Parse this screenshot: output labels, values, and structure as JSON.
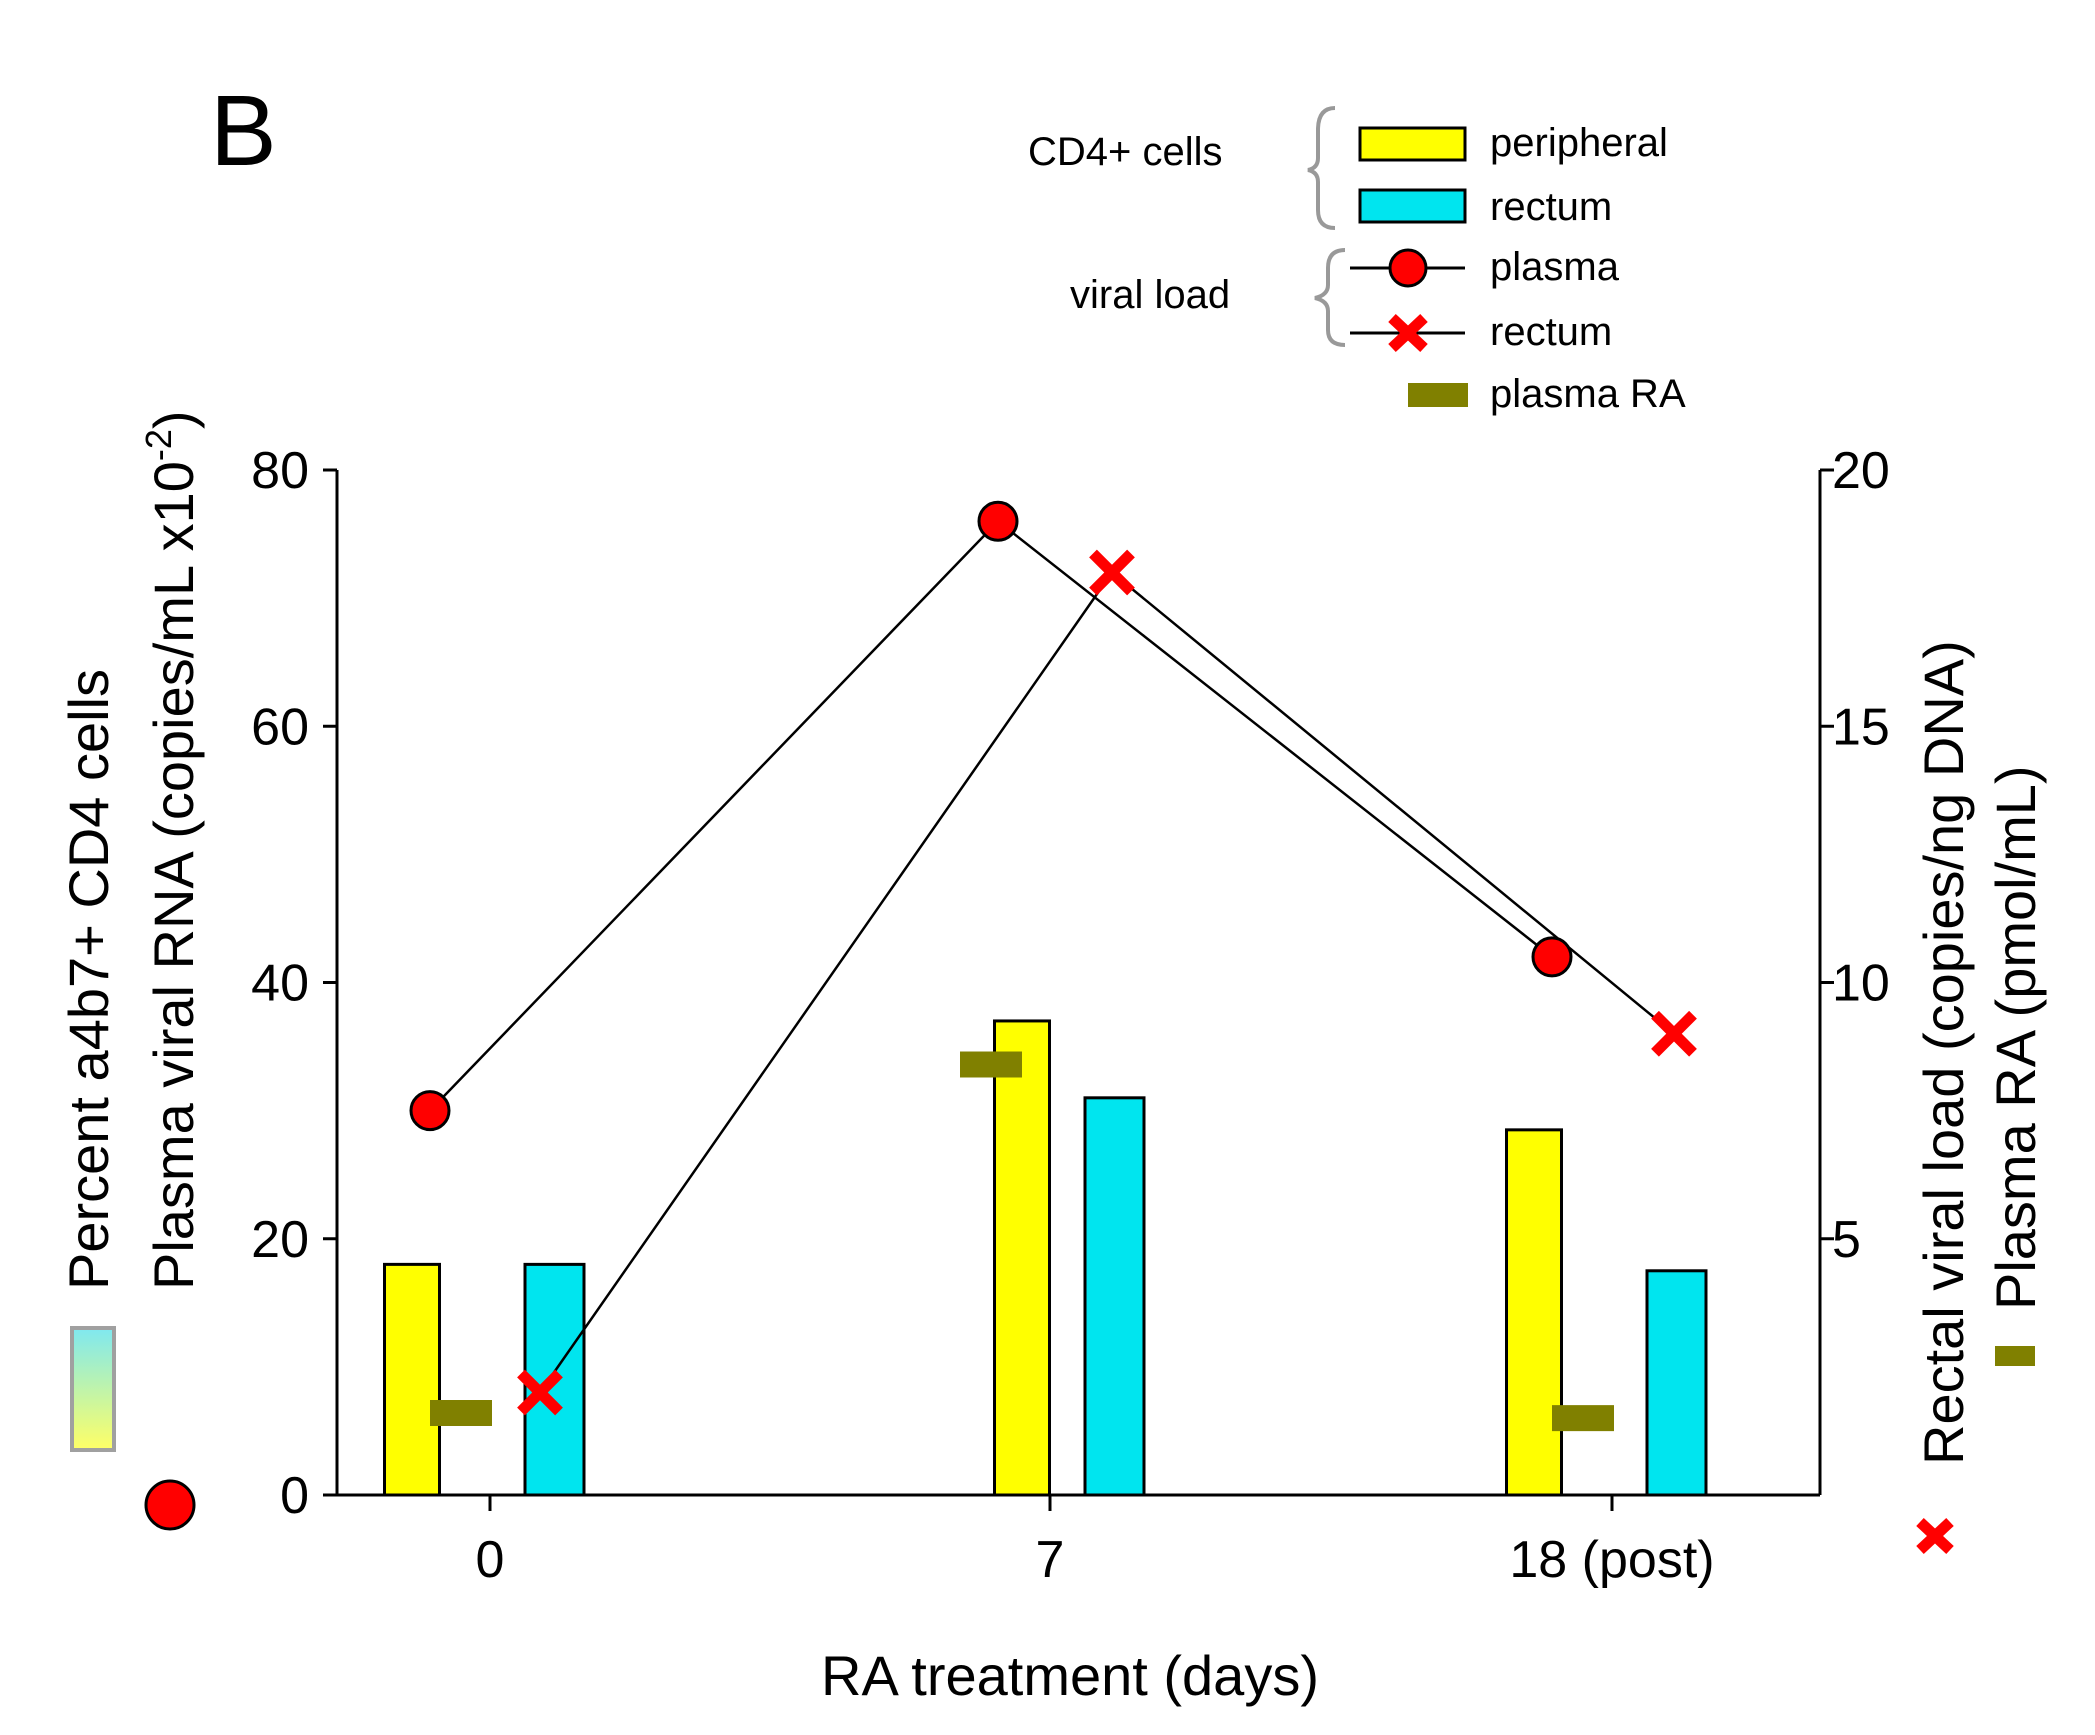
{
  "panel_label": "B",
  "legend": {
    "cd4_group_label": "CD4+ cells",
    "viral_group_label": "viral load",
    "entries": {
      "peripheral": "peripheral",
      "rectum_cells": "rectum",
      "plasma_vl": "plasma",
      "rectum_vl": "rectum",
      "plasma_ra": "plasma RA"
    }
  },
  "colors": {
    "peripheral": "#ffff00",
    "rectum_cells": "#00e5ef",
    "plasma_vl": "#ff0000",
    "rectum_vl": "#ff0000",
    "plasma_ra": "#808000"
  },
  "chart_data": {
    "type": "bar",
    "title": "",
    "xlabel": "RA treatment (days)",
    "categories": [
      "0",
      "7",
      "18 (post)"
    ],
    "left_axis": {
      "label_line1": "Percent a4b7+ CD4 cells",
      "label_line2": "Plasma viral RNA (copies/mL x10",
      "label_line2_sup": "-2",
      "label_line2_end": ")",
      "ylim": [
        0,
        80
      ],
      "ticks": [
        0,
        20,
        40,
        60,
        80
      ]
    },
    "right_axis": {
      "label_line1": "Rectal viral load (copies/ng DNA)",
      "label_line2": "Plasma RA (pmol/mL)",
      "ylim": [
        0,
        20
      ],
      "ticks": [
        5,
        10,
        15,
        20
      ]
    },
    "series": [
      {
        "name": "CD4+ cells peripheral",
        "type": "bar",
        "axis": "left",
        "values": [
          18,
          37,
          28.5
        ]
      },
      {
        "name": "CD4+ cells rectum",
        "type": "bar",
        "axis": "left",
        "values": [
          18,
          31,
          17.5
        ]
      },
      {
        "name": "viral load plasma",
        "type": "line",
        "axis": "left",
        "values": [
          30,
          76,
          42
        ]
      },
      {
        "name": "viral load rectum",
        "type": "line",
        "axis": "right",
        "values": [
          2,
          18,
          9
        ]
      },
      {
        "name": "plasma RA",
        "type": "marker",
        "axis": "right",
        "values": [
          1.6,
          8.4,
          1.5
        ]
      }
    ]
  }
}
